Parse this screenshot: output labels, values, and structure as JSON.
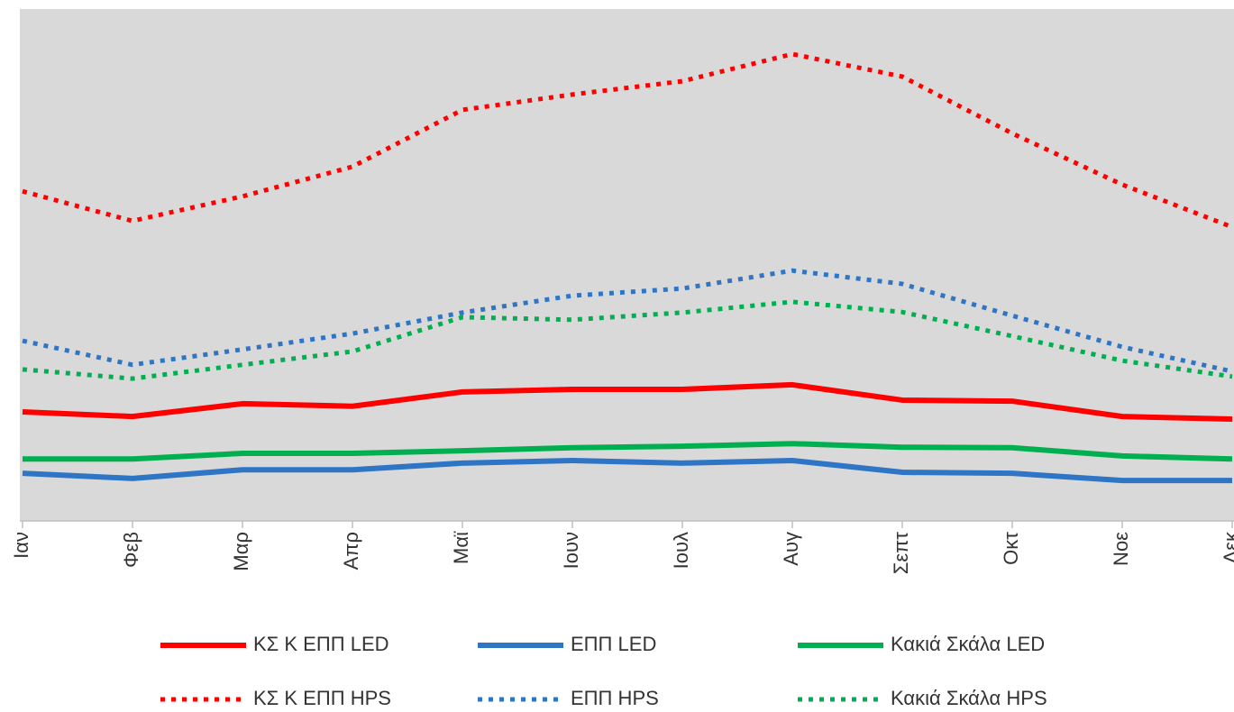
{
  "chart_data": {
    "type": "line",
    "categories": [
      "Ιαν",
      "Φεβ",
      "Μαρ",
      "Απρ",
      "Μαϊ",
      "Ιουν",
      "Ιουλ",
      "Αυγ",
      "Σεπτ",
      "Οκτ",
      "Νοε",
      "Δεκ"
    ],
    "ylim": [
      0,
      100
    ],
    "series": [
      {
        "name": "ΚΣ Κ ΕΠΠ  LED",
        "color": "#ff0000",
        "style": "solid",
        "values": [
          21.3,
          20.4,
          22.9,
          22.4,
          25.2,
          25.7,
          25.7,
          26.6,
          23.6,
          23.4,
          20.4,
          19.9
        ]
      },
      {
        "name": "ΕΠΠ  LED",
        "color": "#2e75c6",
        "style": "solid",
        "values": [
          9.3,
          8.3,
          10.0,
          10.0,
          11.3,
          11.8,
          11.3,
          11.8,
          9.5,
          9.3,
          7.9,
          7.9
        ]
      },
      {
        "name": "Κακιά Σκάλα LED",
        "color": "#00b050",
        "style": "solid",
        "values": [
          12.1,
          12.1,
          13.2,
          13.2,
          13.7,
          14.3,
          14.6,
          15.1,
          14.4,
          14.3,
          12.7,
          12.1
        ]
      },
      {
        "name": "ΚΣ Κ ΕΠΠ  HPS",
        "color": "#ff0000",
        "style": "dotted",
        "values": [
          64.4,
          58.6,
          63.4,
          69.2,
          80.3,
          83.3,
          85.9,
          91.2,
          86.8,
          75.7,
          65.7,
          57.4
        ]
      },
      {
        "name": "ΕΠΠ  HPS",
        "color": "#2e75c6",
        "style": "dotted",
        "values": [
          35.2,
          30.5,
          33.5,
          36.6,
          40.7,
          44.0,
          45.4,
          48.9,
          46.3,
          40.1,
          34.0,
          29.2
        ]
      },
      {
        "name": "Κακιά Σκάλα  HPS",
        "color": "#00b050",
        "style": "dotted",
        "values": [
          29.6,
          27.8,
          30.5,
          33.1,
          39.8,
          39.3,
          40.7,
          42.8,
          40.8,
          36.1,
          31.3,
          28.2
        ]
      }
    ],
    "legend": "bottom"
  }
}
